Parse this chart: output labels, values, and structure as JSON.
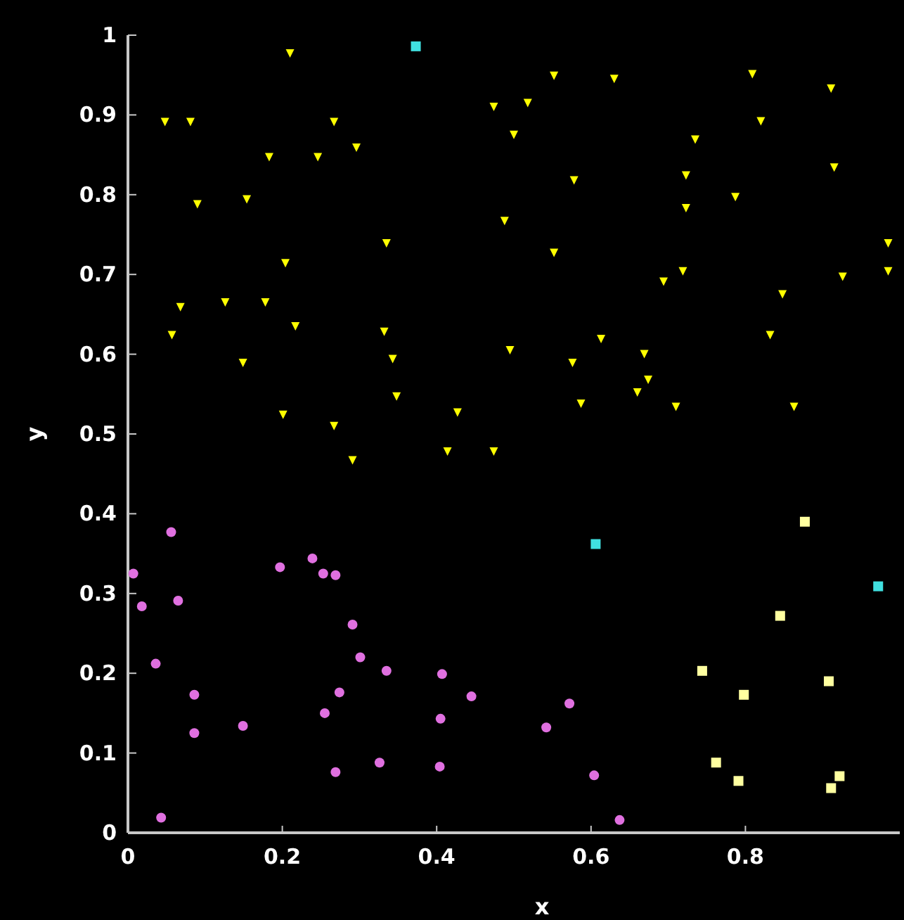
{
  "chart_data": {
    "type": "scatter",
    "xlabel": "x",
    "ylabel": "y",
    "xlim": [
      0,
      1
    ],
    "ylim": [
      0,
      1
    ],
    "xticks": [
      0,
      0.2,
      0.4,
      0.6,
      0.8
    ],
    "yticks": [
      0,
      0.1,
      0.2,
      0.3,
      0.4,
      0.5,
      0.6,
      0.7,
      0.8,
      0.9,
      1
    ],
    "grid": false,
    "series": [
      {
        "color": "#ffff00",
        "marker": "triangle",
        "x": [
          0.21,
          0.048,
          0.081,
          0.267,
          0.474,
          0.183,
          0.246,
          0.296,
          0.09,
          0.154,
          0.335,
          0.204,
          0.068,
          0.126,
          0.178,
          0.217,
          0.057,
          0.332,
          0.343,
          0.149,
          0.348,
          0.201,
          0.267,
          0.427,
          0.291,
          0.414,
          0.474,
          0.495,
          0.552,
          0.63,
          0.518,
          0.5,
          0.578,
          0.488,
          0.552,
          0.809,
          0.911,
          0.82,
          0.735,
          0.723,
          0.723,
          0.787,
          0.915,
          0.985,
          0.985,
          0.926,
          0.719,
          0.694,
          0.848,
          0.832,
          0.613,
          0.576,
          0.669,
          0.674,
          0.66,
          0.587,
          0.71,
          0.863
        ],
        "values": [
          0.977,
          0.891,
          0.891,
          0.891,
          0.91,
          0.847,
          0.847,
          0.859,
          0.788,
          0.794,
          0.739,
          0.714,
          0.659,
          0.665,
          0.665,
          0.635,
          0.624,
          0.628,
          0.594,
          0.589,
          0.547,
          0.524,
          0.51,
          0.527,
          0.467,
          0.478,
          0.478,
          0.605,
          0.949,
          0.945,
          0.915,
          0.875,
          0.818,
          0.767,
          0.727,
          0.951,
          0.933,
          0.892,
          0.869,
          0.824,
          0.783,
          0.797,
          0.834,
          0.739,
          0.704,
          0.697,
          0.704,
          0.691,
          0.675,
          0.624,
          0.619,
          0.589,
          0.6,
          0.568,
          0.552,
          0.538,
          0.534,
          0.534
        ]
      },
      {
        "color": "#e070e0",
        "marker": "circle",
        "x": [
          0.056,
          0.007,
          0.018,
          0.065,
          0.197,
          0.239,
          0.253,
          0.269,
          0.291,
          0.301,
          0.036,
          0.086,
          0.086,
          0.149,
          0.335,
          0.407,
          0.274,
          0.255,
          0.445,
          0.405,
          0.326,
          0.269,
          0.404,
          0.043,
          0.572,
          0.542,
          0.604,
          0.637
        ],
        "values": [
          0.377,
          0.325,
          0.284,
          0.291,
          0.333,
          0.344,
          0.325,
          0.323,
          0.261,
          0.22,
          0.212,
          0.173,
          0.125,
          0.134,
          0.203,
          0.199,
          0.176,
          0.15,
          0.171,
          0.143,
          0.088,
          0.076,
          0.083,
          0.019,
          0.162,
          0.132,
          0.072,
          0.016
        ]
      },
      {
        "color": "#ffffa0",
        "marker": "square",
        "x": [
          0.877,
          0.845,
          0.744,
          0.798,
          0.908,
          0.762,
          0.791,
          0.922,
          0.911
        ],
        "values": [
          0.39,
          0.272,
          0.203,
          0.173,
          0.19,
          0.088,
          0.065,
          0.071,
          0.056
        ]
      },
      {
        "color": "#40e0e0",
        "marker": "square",
        "x": [
          0.373,
          0.606,
          0.972
        ],
        "values": [
          0.986,
          0.362,
          0.309
        ]
      }
    ]
  }
}
